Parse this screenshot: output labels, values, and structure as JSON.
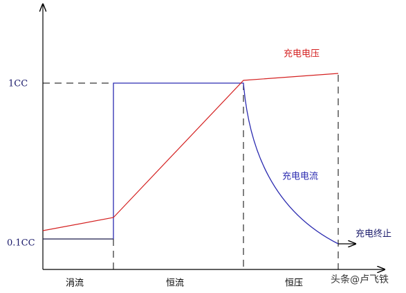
{
  "y_labels": [
    "1CC",
    "0.1CC"
  ],
  "curve_labels": {
    "voltage": "充电电压",
    "current": "充电电流",
    "termination": "充电终止"
  },
  "phases": [
    "涓流",
    "恒流",
    "恒压"
  ],
  "watermark": "头条@卢飞铁"
}
